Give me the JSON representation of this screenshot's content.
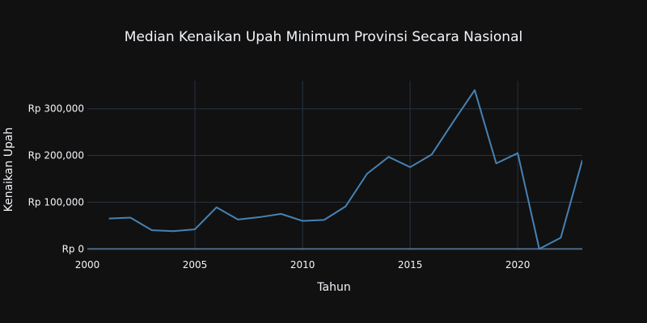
{
  "chart_data": {
    "type": "line",
    "title": "Median Kenaikan Upah Minimum Provinsi Secara Nasional",
    "xlabel": "Tahun",
    "ylabel": "Kenaikan Upah",
    "xlim": [
      2000,
      2023
    ],
    "ylim": [
      -3000,
      360000
    ],
    "x_ticks": [
      2000,
      2005,
      2010,
      2015,
      2020
    ],
    "y_ticks": [
      0,
      100000,
      200000,
      300000
    ],
    "y_tick_labels": [
      "Rp 0",
      "Rp 100,000",
      "Rp 200,000",
      "Rp 300,000"
    ],
    "grid": true,
    "background": "#111111",
    "grid_color": "#283442",
    "text_color": "#f2f5fa",
    "series": [
      {
        "color": "#4682b4",
        "x": [
          2001,
          2002,
          2003,
          2004,
          2005,
          2006,
          2007,
          2008,
          2009,
          2010,
          2011,
          2012,
          2013,
          2014,
          2015,
          2016,
          2017,
          2018,
          2019,
          2020,
          2021,
          2022,
          2023
        ],
        "y": [
          65000,
          67000,
          40000,
          38000,
          42000,
          89000,
          63000,
          68000,
          75000,
          60000,
          62000,
          91000,
          161000,
          197000,
          175000,
          202000,
          272000,
          340000,
          183000,
          205000,
          0,
          24000,
          190000
        ]
      }
    ]
  }
}
